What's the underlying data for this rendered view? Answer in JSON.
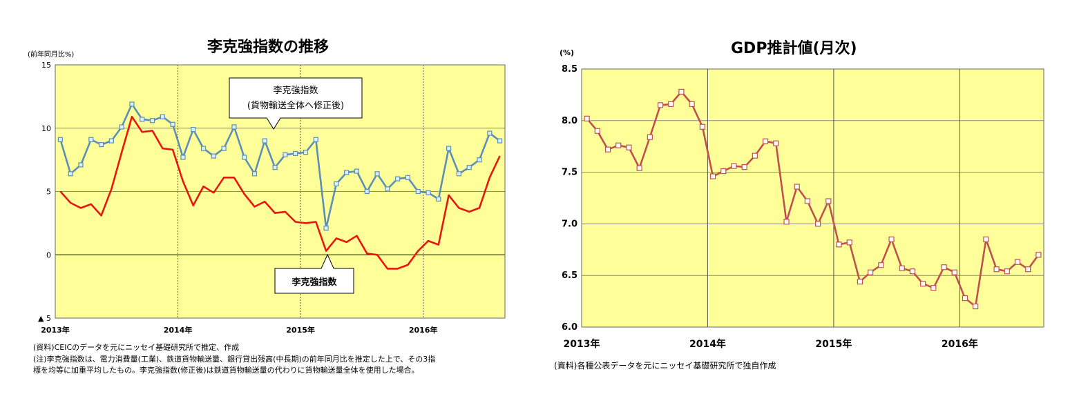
{
  "chart_data": [
    {
      "type": "line",
      "title": "李克強指数の推移",
      "unit_label": "(前年同月比%)",
      "ylim": [
        -5,
        15
      ],
      "y_ticks": [
        15,
        10,
        5,
        0,
        -5
      ],
      "y_tick_labels": [
        "15",
        "10",
        "5",
        "0",
        "▲ 5"
      ],
      "x_start": "2013-01",
      "x_end": "2016-08",
      "x_ticks": [
        {
          "label": "2013年",
          "month": "2013-01"
        },
        {
          "label": "2014年",
          "month": "2014-01"
        },
        {
          "label": "2015年",
          "month": "2015-01"
        },
        {
          "label": "2016年",
          "month": "2016-01"
        }
      ],
      "grid": true,
      "background": "#FFFF99",
      "series": [
        {
          "name": "李克強指数(貨物輸送全体へ修正後)",
          "color": "#5B8FB5",
          "marker": "square",
          "start": "2013-01",
          "values": [
            9.1,
            6.4,
            7.1,
            9.1,
            8.7,
            9.0,
            10.1,
            11.9,
            10.7,
            10.6,
            10.9,
            10.3,
            7.7,
            9.9,
            8.4,
            7.8,
            8.4,
            10.1,
            7.7,
            6.4,
            9.0,
            6.9,
            7.9,
            8.0,
            8.1,
            9.1,
            2.1,
            5.6,
            6.5,
            6.6,
            5.0,
            6.4,
            5.2,
            6.0,
            6.1,
            5.0,
            4.9,
            4.4,
            8.4,
            6.4,
            6.9,
            7.5,
            9.6,
            9.0
          ]
        },
        {
          "name": "李克強指数",
          "color": "#E8160C",
          "marker": "none",
          "start": "2013-01",
          "values": [
            5.0,
            4.1,
            3.7,
            4.0,
            3.1,
            5.2,
            8.1,
            10.9,
            9.7,
            9.8,
            8.4,
            8.3,
            5.8,
            3.9,
            5.4,
            4.9,
            6.1,
            6.1,
            4.8,
            3.8,
            4.2,
            3.3,
            3.4,
            2.6,
            2.5,
            2.6,
            0.3,
            1.3,
            1.0,
            1.5,
            0.1,
            0.0,
            -1.1,
            -1.1,
            -0.8,
            0.3,
            1.1,
            0.8,
            4.7,
            3.7,
            3.4,
            3.7,
            6.1,
            7.8
          ]
        }
      ],
      "annotations": [
        {
          "line1": "李克強指数",
          "line2": "(貨物輸送全体へ修正後)"
        },
        {
          "line1": "李克強指数"
        }
      ],
      "notes": [
        "(資料)CEICのデータを元にニッセイ基礎研究所で推定、作成",
        "(注)李克強指数は、電力消費量(工業)、鉄道貨物輸送量、銀行貸出残高(中長期)の前年同月比を推定した上で、その3指",
        "標を均等に加重平均したもの。李克強指数(修正後)は鉄道貨物輸送量の代わりに貨物輸送量全体を使用した場合。"
      ]
    },
    {
      "type": "line",
      "title": "GDP推計値(月次)",
      "unit_label": "(%)",
      "ylim": [
        6.0,
        8.5
      ],
      "y_ticks": [
        8.5,
        8.0,
        7.5,
        7.0,
        6.5,
        6.0
      ],
      "y_tick_labels": [
        "8.5",
        "8.0",
        "7.5",
        "7.0",
        "6.5",
        "6.0"
      ],
      "x_start": "2013-01",
      "x_end": "2016-08",
      "x_ticks": [
        {
          "label": "2013年",
          "month": "2013-01"
        },
        {
          "label": "2014年",
          "month": "2014-01"
        },
        {
          "label": "2015年",
          "month": "2015-01"
        },
        {
          "label": "2016年",
          "month": "2016-01"
        }
      ],
      "grid": true,
      "background": "#FFFF99",
      "series": [
        {
          "color": "#C0504D",
          "marker": "square",
          "start": "2013-01",
          "values": [
            8.02,
            7.9,
            7.72,
            7.76,
            7.74,
            7.54,
            7.84,
            8.15,
            8.16,
            8.28,
            8.16,
            7.94,
            7.46,
            7.51,
            7.56,
            7.55,
            7.66,
            7.8,
            7.78,
            7.02,
            7.36,
            7.22,
            7.0,
            7.22,
            6.8,
            6.82,
            6.44,
            6.53,
            6.6,
            6.85,
            6.57,
            6.54,
            6.42,
            6.38,
            6.58,
            6.53,
            6.28,
            6.2,
            6.85,
            6.56,
            6.54,
            6.63,
            6.56,
            6.7
          ]
        }
      ],
      "notes": [
        "(資料)各種公表データを元にニッセイ基礎研究所で独自作成"
      ]
    }
  ]
}
